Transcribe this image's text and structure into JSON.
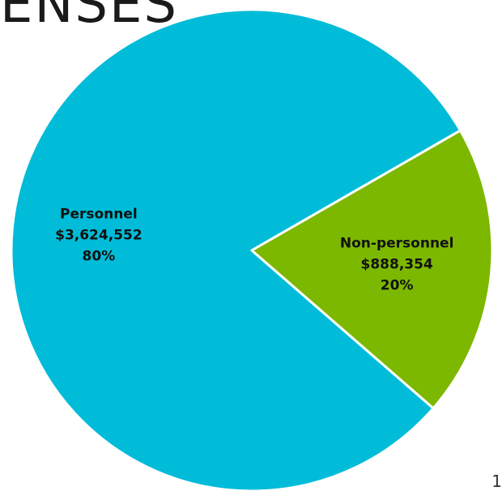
{
  "page": {
    "title_visible": "ENSES",
    "page_number": "1"
  },
  "colors": {
    "personnel": "#00BCD8",
    "non_personnel": "#7DB800",
    "slice_border": "#ffffff",
    "label_text": "#111111"
  },
  "chart_data": {
    "type": "pie",
    "title": "",
    "slices": [
      {
        "label": "Personnel",
        "amount": "$3,624,552",
        "value": 3624552,
        "percent": "80%",
        "color": "#00BCD8"
      },
      {
        "label": "Non-personnel",
        "amount": "$888,354",
        "value": 888354,
        "percent": "20%",
        "color": "#7DB800"
      }
    ],
    "legend": "none"
  }
}
